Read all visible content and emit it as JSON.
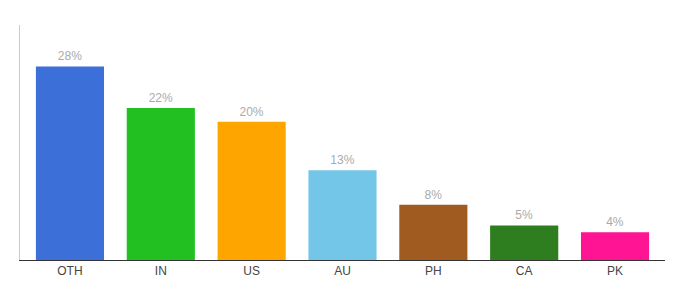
{
  "chart_data": {
    "type": "bar",
    "categories": [
      "OTH",
      "IN",
      "US",
      "AU",
      "PH",
      "CA",
      "PK"
    ],
    "values": [
      28,
      22,
      20,
      13,
      8,
      5,
      4
    ],
    "value_labels": [
      "28%",
      "22%",
      "20%",
      "13%",
      "8%",
      "5%",
      "4%"
    ],
    "data_labels": true,
    "colors": [
      "#3d6fd9",
      "#22c020",
      "#ffa500",
      "#74c6e8",
      "#a05c20",
      "#2e7d1e",
      "#ff1493"
    ],
    "ylim": [
      0,
      34
    ],
    "grid": false,
    "tick_labels": "x"
  }
}
